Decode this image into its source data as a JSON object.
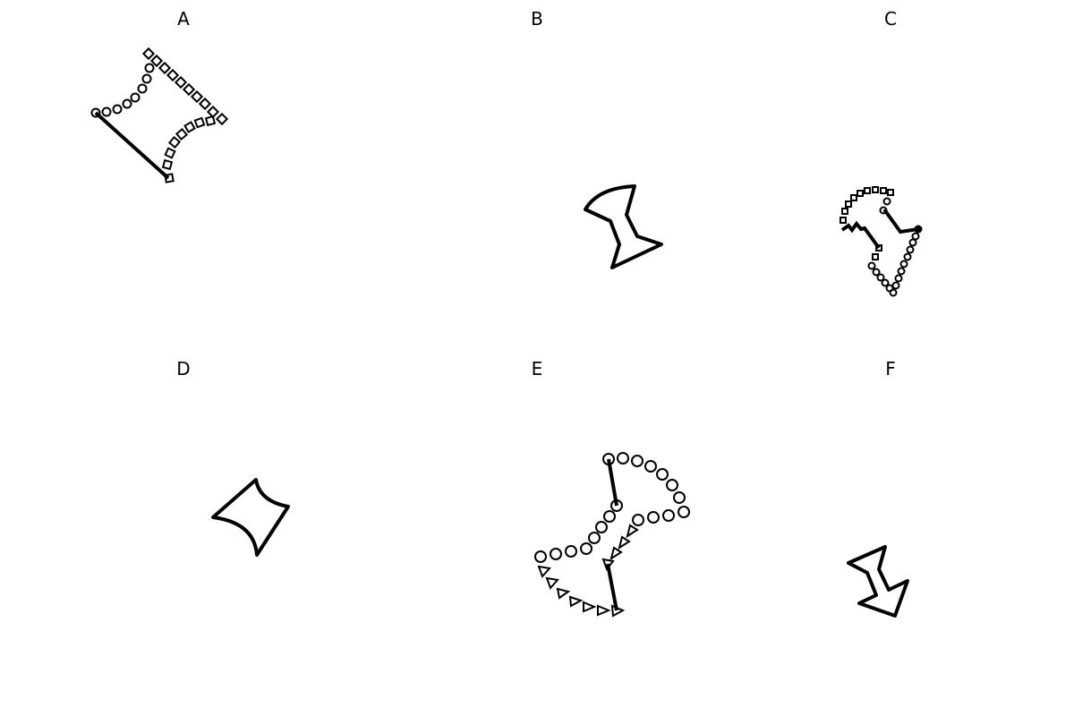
{
  "panels": [
    {
      "label": "A"
    },
    {
      "label": "B"
    },
    {
      "label": "C"
    },
    {
      "label": "D"
    },
    {
      "label": "E"
    },
    {
      "label": "F"
    }
  ],
  "colors": {
    "stroke": "#000000",
    "background": "#ffffff"
  }
}
